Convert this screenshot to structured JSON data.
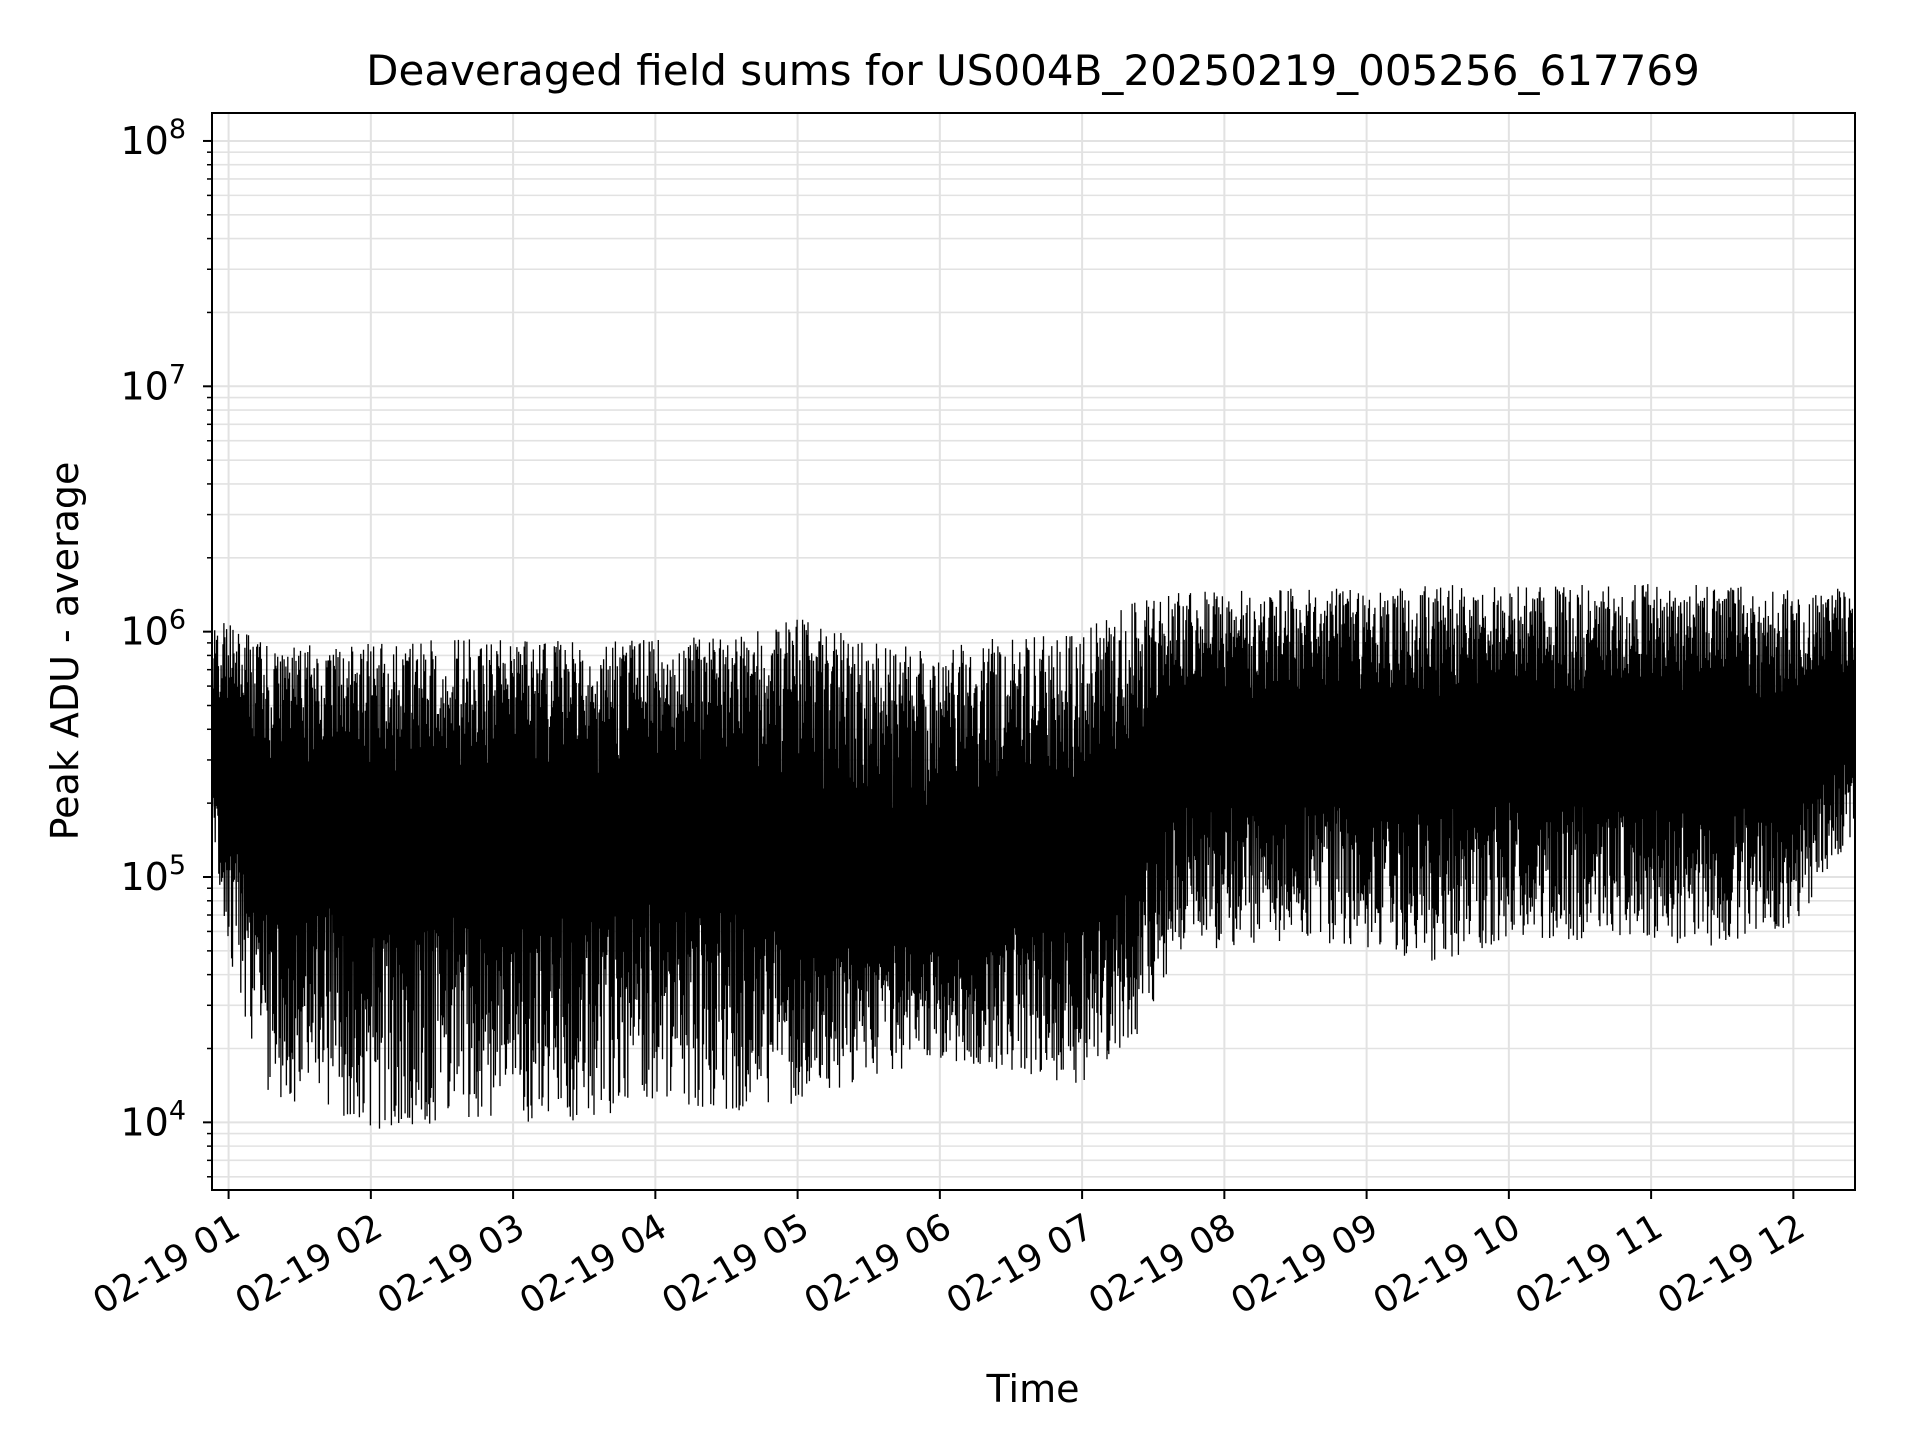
{
  "chart_data": {
    "type": "line",
    "title": "Deaveraged field sums for US004B_20250219_005256_617769",
    "xlabel": "Time",
    "ylabel": "Peak ADU - average",
    "y_scale": "log",
    "ylim": [
      5300,
      130000000
    ],
    "xlim": [
      "2025-02-19T00:53",
      "2025-02-19T12:26"
    ],
    "grid": true,
    "legend": "none",
    "x_ticks": [
      "02-19 01",
      "02-19 02",
      "02-19 03",
      "02-19 04",
      "02-19 05",
      "02-19 06",
      "02-19 07",
      "02-19 08",
      "02-19 09",
      "02-19 10",
      "02-19 11",
      "02-19 12"
    ],
    "y_ticks": [
      {
        "base": "10",
        "exp": "4",
        "value": 10000
      },
      {
        "base": "10",
        "exp": "5",
        "value": 100000
      },
      {
        "base": "10",
        "exp": "6",
        "value": 1000000
      },
      {
        "base": "10",
        "exp": "7",
        "value": 10000000
      },
      {
        "base": "10",
        "exp": "8",
        "value": 100000000
      }
    ],
    "line_color": "#000000",
    "series": [
      {
        "x": [
          "2025-02-19T00:53",
          "2025-02-19T01:00",
          "2025-02-19T01:15",
          "2025-02-19T01:30",
          "2025-02-19T01:45",
          "2025-02-19T02:00",
          "2025-02-19T02:30",
          "2025-02-19T03:00",
          "2025-02-19T03:30",
          "2025-02-19T04:00",
          "2025-02-19T04:30",
          "2025-02-19T05:00",
          "2025-02-19T05:30",
          "2025-02-19T06:00",
          "2025-02-19T06:30",
          "2025-02-19T07:00",
          "2025-02-19T07:20",
          "2025-02-19T07:40",
          "2025-02-19T08:00",
          "2025-02-19T08:30",
          "2025-02-19T09:00",
          "2025-02-19T09:30",
          "2025-02-19T10:00",
          "2025-02-19T10:30",
          "2025-02-19T11:00",
          "2025-02-19T11:30",
          "2025-02-19T12:00",
          "2025-02-19T12:26"
        ],
        "max": [
          1300000,
          1100000,
          900000,
          900000,
          850000,
          900000,
          950000,
          950000,
          900000,
          950000,
          950000,
          1150000,
          900000,
          900000,
          950000,
          1000000,
          1300000,
          1500000,
          1500000,
          1500000,
          1500000,
          1550000,
          1550000,
          1550000,
          1600000,
          1550000,
          1500000,
          1500000
        ],
        "min": [
          150000,
          50000,
          13000,
          12000,
          11000,
          9000,
          10000,
          10000,
          10000,
          12000,
          11000,
          12000,
          15000,
          17000,
          16000,
          14000,
          18000,
          50000,
          50000,
          55000,
          50000,
          45000,
          55000,
          55000,
          55000,
          50000,
          60000,
          150000
        ],
        "typical": [
          300000,
          250000,
          150000,
          150000,
          150000,
          120000,
          130000,
          130000,
          130000,
          150000,
          150000,
          100000,
          80000,
          80000,
          110000,
          100000,
          150000,
          300000,
          300000,
          300000,
          300000,
          300000,
          330000,
          300000,
          300000,
          300000,
          280000,
          400000
        ]
      }
    ]
  }
}
